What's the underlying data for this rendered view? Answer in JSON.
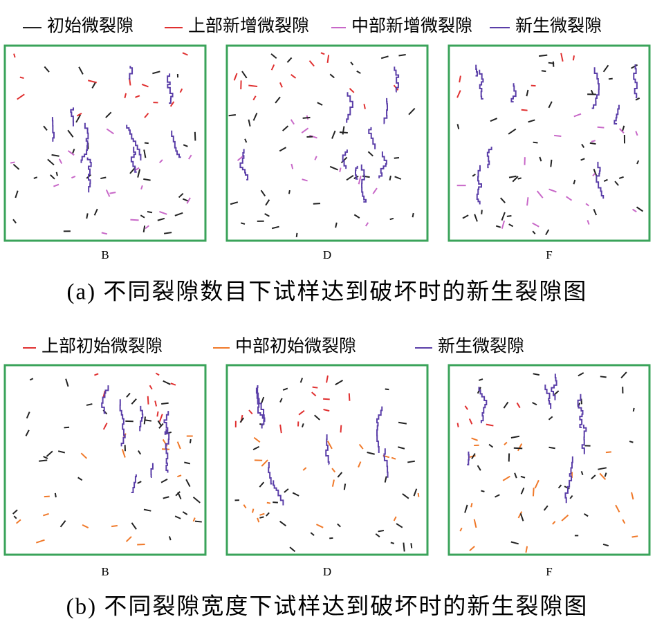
{
  "part_a": {
    "legend": [
      {
        "label": "初始微裂隙",
        "color": "#222222"
      },
      {
        "label": "上部新增微裂隙",
        "color": "#e03030"
      },
      {
        "label": "中部新增微裂隙",
        "color": "#c868c8"
      },
      {
        "label": "新生微裂隙",
        "color": "#5a3ea8"
      }
    ],
    "panels": [
      "B",
      "D",
      "F"
    ],
    "caption": "(a) 不同裂隙数目下试样达到破坏时的新生裂隙图"
  },
  "part_b": {
    "legend": [
      {
        "label": "上部初始微裂隙",
        "color": "#e03030"
      },
      {
        "label": "中部初始微裂隙",
        "color": "#f07828"
      },
      {
        "label": "新生微裂隙",
        "color": "#5a3ea8"
      }
    ],
    "panels": [
      "B",
      "D",
      "F"
    ],
    "caption": "(b) 不同裂隙宽度下试样达到破坏时的新生裂隙图"
  }
}
